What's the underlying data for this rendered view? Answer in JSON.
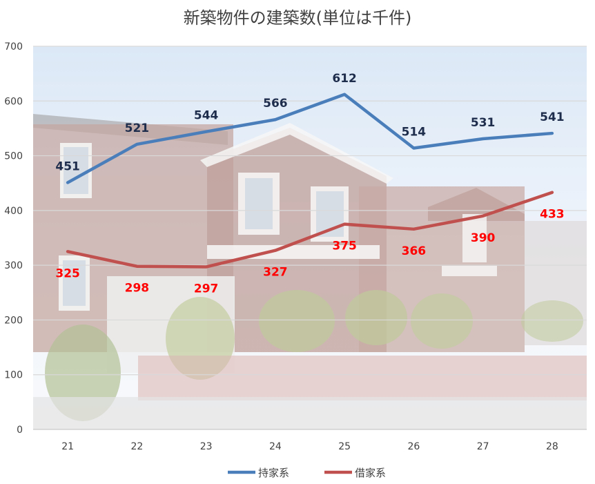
{
  "chart_data": {
    "type": "line",
    "title": "新築物件の建築数(単位は千件)",
    "xlabel": "",
    "ylabel": "",
    "categories": [
      "21",
      "22",
      "23",
      "24",
      "25",
      "26",
      "27",
      "28"
    ],
    "ylim": [
      0,
      700
    ],
    "yticks": [
      0,
      100,
      200,
      300,
      400,
      500,
      600,
      700
    ],
    "grid": true,
    "legend_position": "bottom",
    "background": "photo of two-story apartment buildings (faded)",
    "series": [
      {
        "name": "持家系",
        "color": "#4a7ebb",
        "label_color": "#1f2d4d",
        "label_position": "above",
        "values": [
          451,
          521,
          544,
          566,
          612,
          514,
          531,
          541
        ]
      },
      {
        "name": "借家系",
        "color": "#c0504d",
        "label_color": "#ff0000",
        "label_position": "below",
        "values": [
          325,
          298,
          297,
          327,
          375,
          366,
          390,
          433
        ]
      }
    ]
  }
}
